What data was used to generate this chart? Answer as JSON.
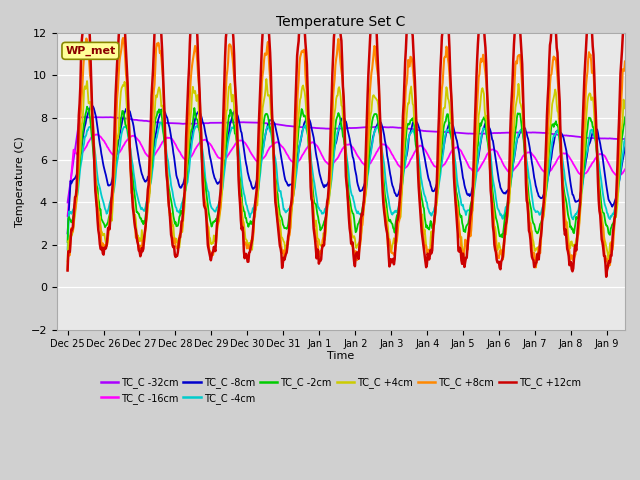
{
  "title": "Temperature Set C",
  "xlabel": "Time",
  "ylabel": "Temperature (C)",
  "ylim": [
    -2,
    12
  ],
  "yticks": [
    -2,
    0,
    2,
    4,
    6,
    8,
    10,
    12
  ],
  "x_labels": [
    "Dec 25",
    "Dec 26",
    "Dec 27",
    "Dec 28",
    "Dec 29",
    "Dec 30",
    "Dec 31",
    "Jan 1",
    "Jan 2",
    "Jan 3",
    "Jan 4",
    "Jan 5",
    "Jan 6",
    "Jan 7",
    "Jan 8",
    "Jan 9"
  ],
  "bg_color": "#d0d0d0",
  "plot_bg_color": "#e8e8e8",
  "wp_met_box_color": "#ffff99",
  "wp_met_text_color": "#8b0000",
  "grid_color": "#ffffff",
  "series_colors": {
    "TC_C -32cm": "#aa00ff",
    "TC_C -16cm": "#ff00ff",
    "TC_C -8cm": "#0000cc",
    "TC_C -4cm": "#00cccc",
    "TC_C -2cm": "#00cc00",
    "TC_C +4cm": "#cccc00",
    "TC_C +8cm": "#ff8800",
    "TC_C +12cm": "#cc0000"
  }
}
